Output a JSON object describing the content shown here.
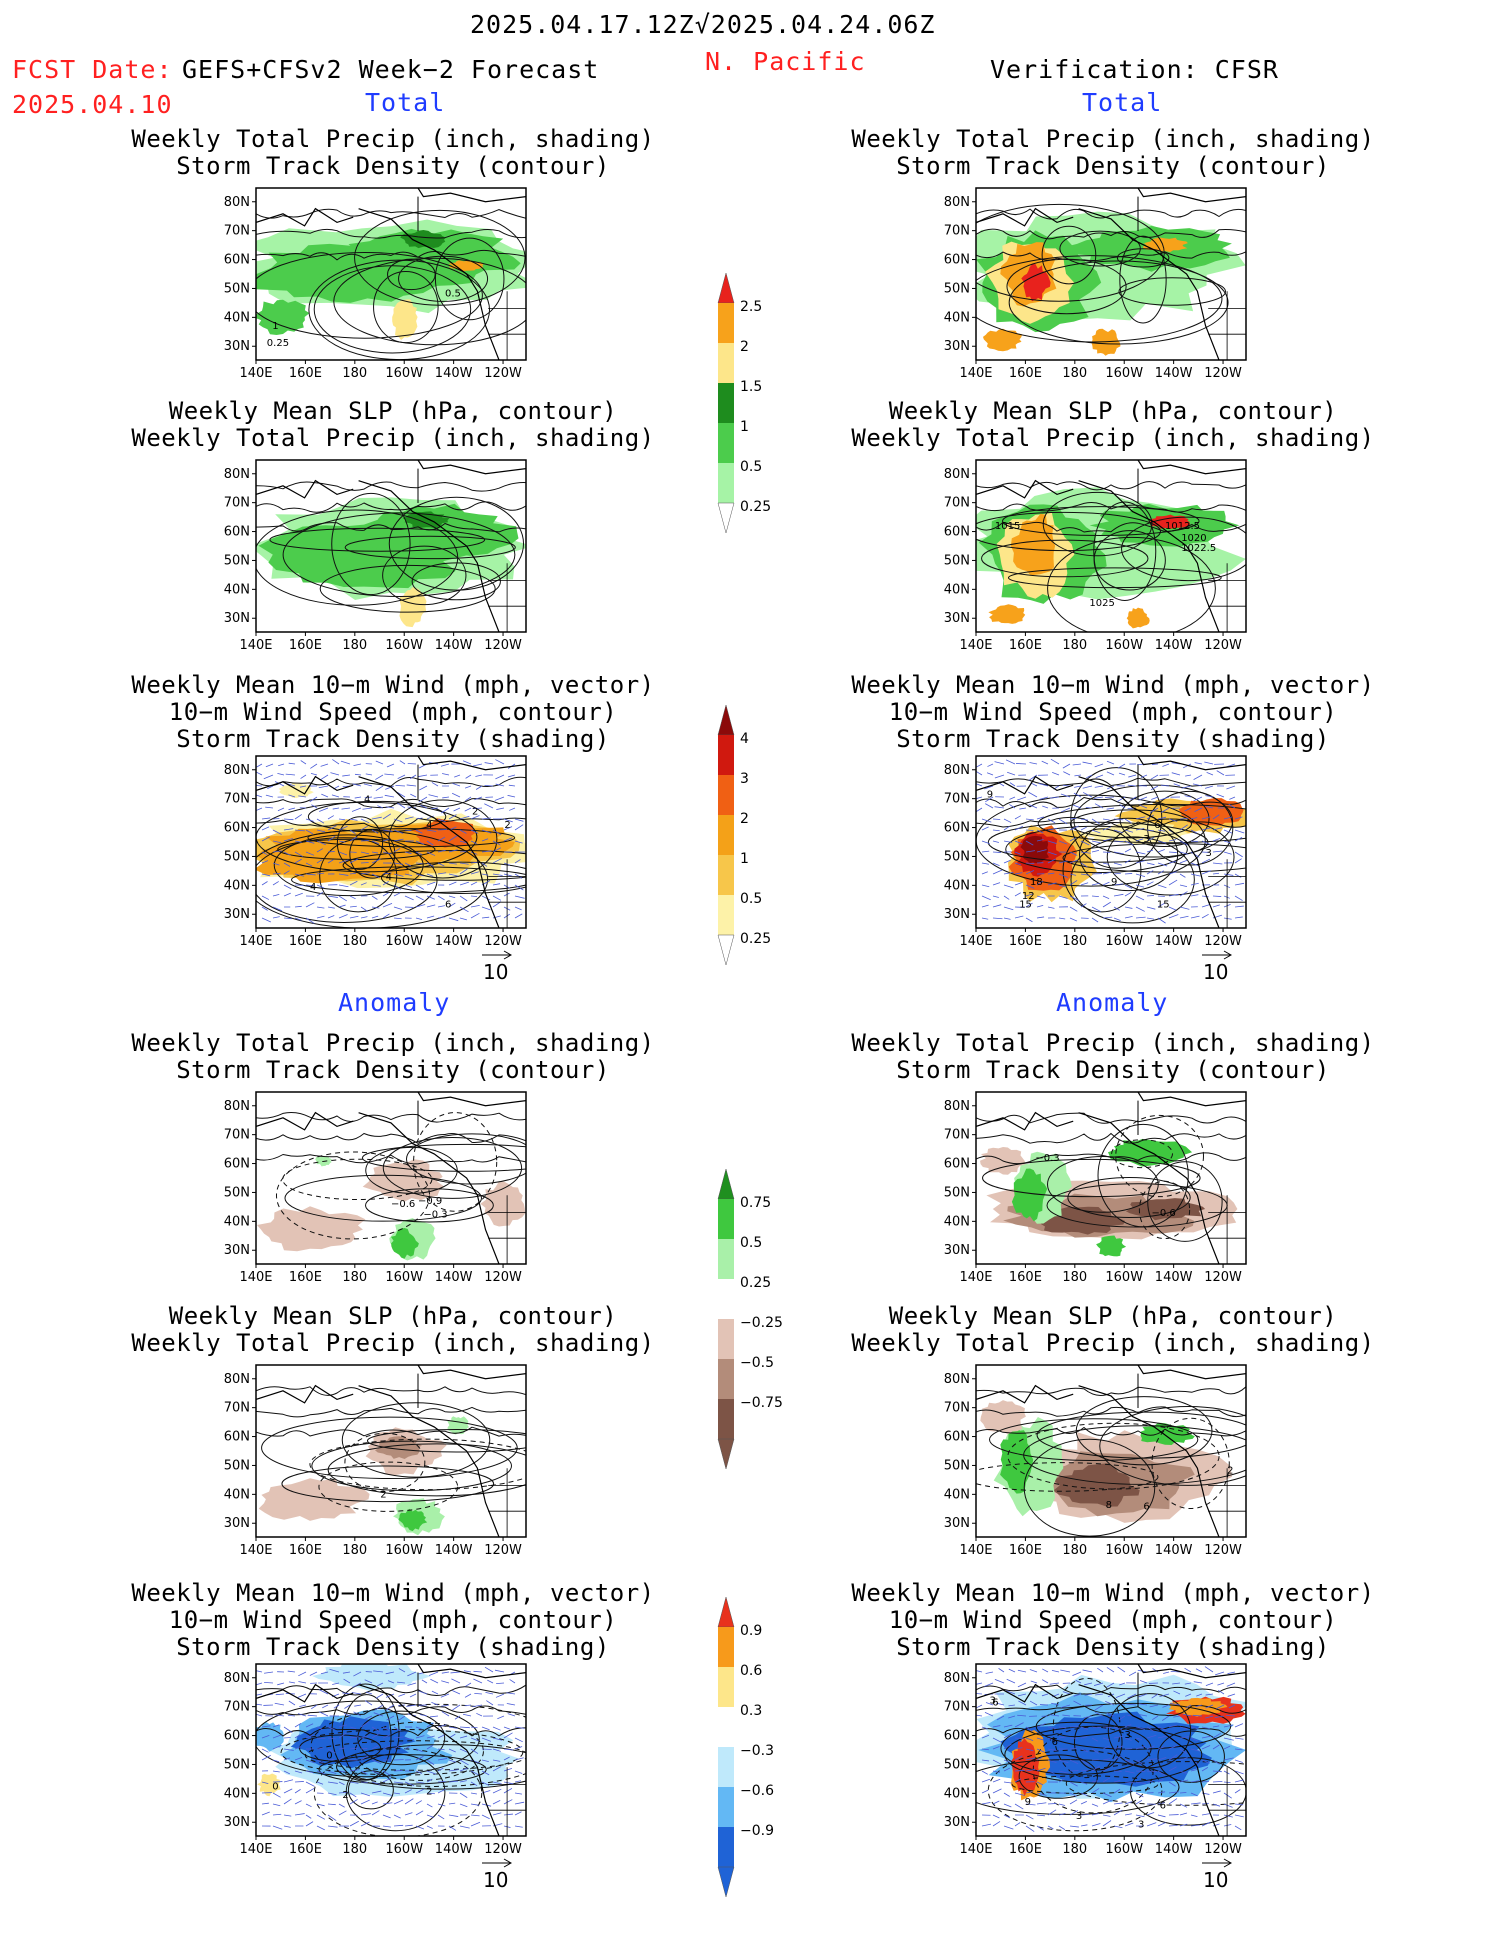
{
  "header": {
    "period": "2025.04.17.12Z√2025.04.24.06Z",
    "fcst_label": "FCST Date:",
    "fcst_model": "GEFS+CFSv2 Week−2 Forecast",
    "fcst_date": "2025.04.10",
    "region": "N. Pacific",
    "verification": "Verification: CFSR"
  },
  "sections": {
    "total": "Total",
    "anomaly": "Anomaly"
  },
  "titles": {
    "precip_storm": [
      "Weekly Total Precip (inch, shading)",
      "Storm Track Density (contour)"
    ],
    "slp_precip": [
      "Weekly Mean SLP (hPa, contour)",
      "Weekly Total Precip (inch, shading)"
    ],
    "wind_storm": [
      "Weekly Mean 10−m Wind (mph, vector)",
      "10−m Wind Speed (mph, contour)",
      "Storm Track Density (shading)"
    ]
  },
  "axes": {
    "lat_ticks": [
      "80N",
      "70N",
      "60N",
      "50N",
      "40N",
      "30N"
    ],
    "lon_ticks": [
      "140E",
      "160E",
      "180",
      "160W",
      "140W",
      "120W"
    ]
  },
  "colorbars": {
    "precip_total": {
      "labels": [
        "2.5",
        "2",
        "1.5",
        "1",
        "0.5",
        "0.25"
      ],
      "colors": [
        "#e8221d",
        "#f7a21b",
        "#fde68a",
        "#1e8c1e",
        "#4ccc4c",
        "#a6f3a6"
      ]
    },
    "storm_total": {
      "labels": [
        "4",
        "3",
        "2",
        "1",
        "0.5",
        "0.25"
      ],
      "colors": [
        "#8b0a0a",
        "#d0190f",
        "#f06014",
        "#f4a118",
        "#f7c64a",
        "#fdf2a8"
      ]
    },
    "precip_anom": {
      "labels": [
        "0.75",
        "0.5",
        "0.25",
        "−0.25",
        "−0.5",
        "−0.75"
      ],
      "colors": [
        "#1f8f1f",
        "#3fc83f",
        "#a9f0a9",
        "#ffffff",
        "#e2c3b6",
        "#b38c7a",
        "#7d5446"
      ]
    },
    "storm_anom": {
      "labels": [
        "0.9",
        "0.6",
        "0.3",
        "−0.3",
        "−0.6",
        "−0.9"
      ],
      "colors": [
        "#e8321d",
        "#f79a1b",
        "#fde68a",
        "#ffffff",
        "#bfe9fb",
        "#63b8f4",
        "#1f63d6"
      ]
    }
  },
  "vector_ref": "10",
  "map_labels": {
    "l1": [
      "1",
      "0.5",
      "0.25"
    ],
    "r2": [
      "1015",
      "1012.5",
      "1020",
      "1022.5",
      "1025"
    ],
    "l3": [
      "4",
      "4",
      "4",
      "2",
      "2",
      "4",
      "6"
    ],
    "r3": [
      "9",
      "6",
      "3",
      "18",
      "12",
      "15",
      "9",
      "15",
      "3"
    ],
    "l4": [
      "−0.6",
      "−0.9",
      "−0.3"
    ],
    "r4": [
      "−0.3",
      "−0.6"
    ],
    "l5": [
      "2"
    ],
    "r5": [
      "2",
      "8",
      "6"
    ],
    "l6": [
      "0",
      "0",
      "2",
      "2"
    ],
    "r6": [
      "6",
      "3",
      "6",
      "3",
      "9",
      "3",
      "6",
      "3"
    ]
  }
}
